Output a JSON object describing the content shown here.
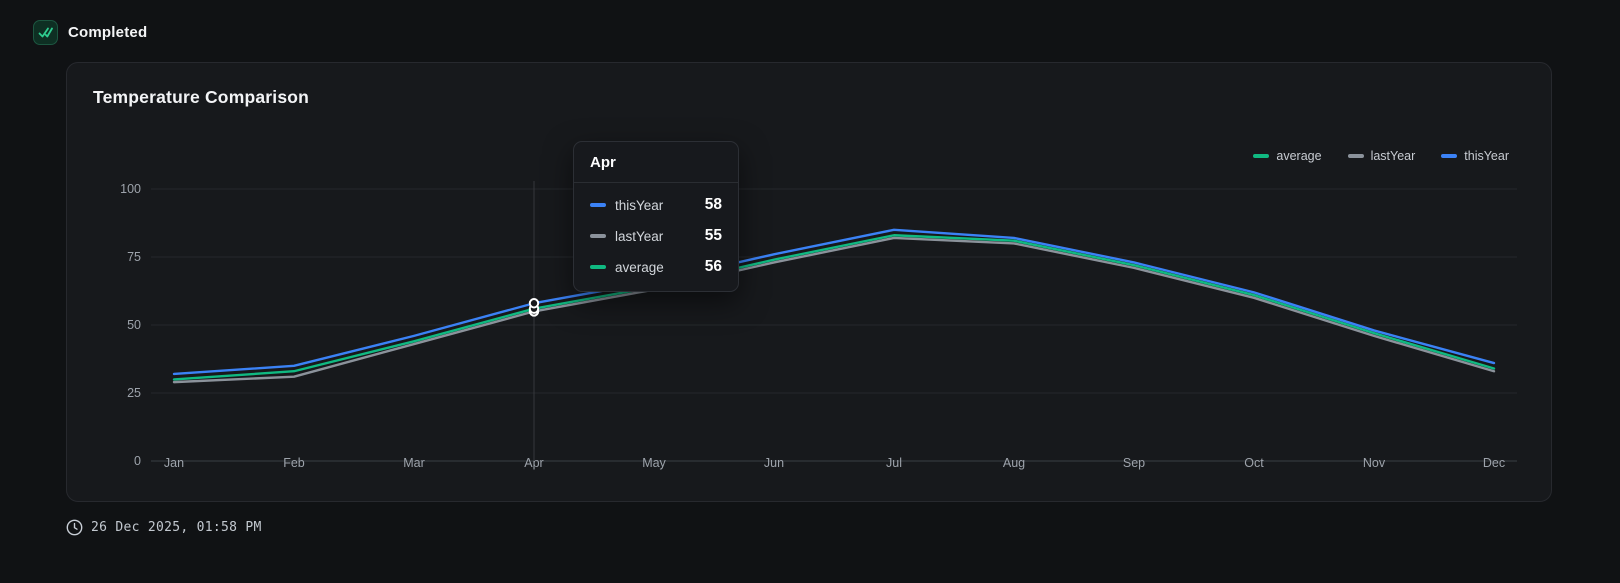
{
  "header": {
    "completed_label": "Completed"
  },
  "card": {
    "title": "Temperature Comparison"
  },
  "colors": {
    "thisYear": "#3b82f6",
    "lastYear": "#8b929b",
    "average": "#10b981",
    "grid": "#25282c",
    "axis": "#3a3e44",
    "crosshair": "#35383d",
    "check_green": "#2ecc8f"
  },
  "chart_data": {
    "type": "line",
    "title": "Temperature Comparison",
    "x": [
      "Jan",
      "Feb",
      "Mar",
      "Apr",
      "May",
      "Jun",
      "Jul",
      "Aug",
      "Sep",
      "Oct",
      "Nov",
      "Dec"
    ],
    "series": [
      {
        "name": "lastYear",
        "color": "#8b929b",
        "values": [
          29,
          31,
          43,
          55,
          63,
          73,
          82,
          80,
          71,
          60,
          46,
          33
        ]
      },
      {
        "name": "average",
        "color": "#10b981",
        "values": [
          30,
          33,
          44,
          56,
          64,
          74,
          83,
          81,
          72,
          61,
          47,
          34
        ]
      },
      {
        "name": "thisYear",
        "color": "#3b82f6",
        "values": [
          32,
          35,
          46,
          58,
          66,
          76,
          85,
          82,
          73,
          62,
          48,
          36
        ]
      }
    ],
    "ylabel": "",
    "xlabel": "",
    "ylim": [
      0,
      100
    ],
    "yticks": [
      0,
      25,
      50,
      75,
      100
    ],
    "grid": true,
    "legend_position": "top-right",
    "legend_order": [
      "average",
      "lastYear",
      "thisYear"
    ]
  },
  "tooltip": {
    "title": "Apr",
    "active_index": 3,
    "rows": [
      {
        "name": "thisYear",
        "value": "58",
        "color": "#3b82f6"
      },
      {
        "name": "lastYear",
        "value": "55",
        "color": "#8b929b"
      },
      {
        "name": "average",
        "value": "56",
        "color": "#10b981"
      }
    ]
  },
  "footer": {
    "timestamp": "26 Dec 2025, 01:58 PM"
  }
}
